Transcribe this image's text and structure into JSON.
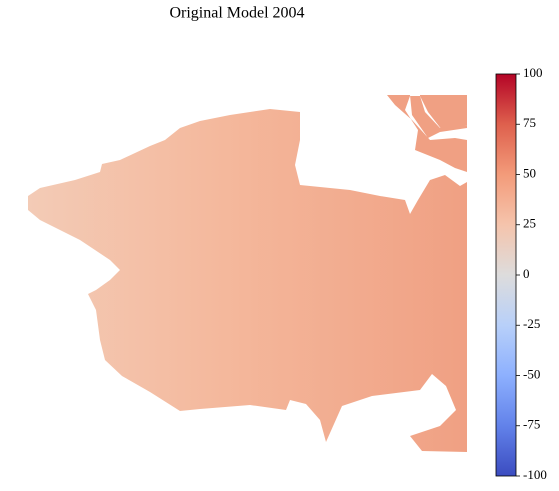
{
  "chart_data": {
    "type": "heatmap",
    "title": "Original Model 2004",
    "ylim": [
      -100,
      100
    ],
    "yticks": [
      -100,
      -75,
      -50,
      -25,
      0,
      25,
      50,
      75,
      100
    ]
  }
}
